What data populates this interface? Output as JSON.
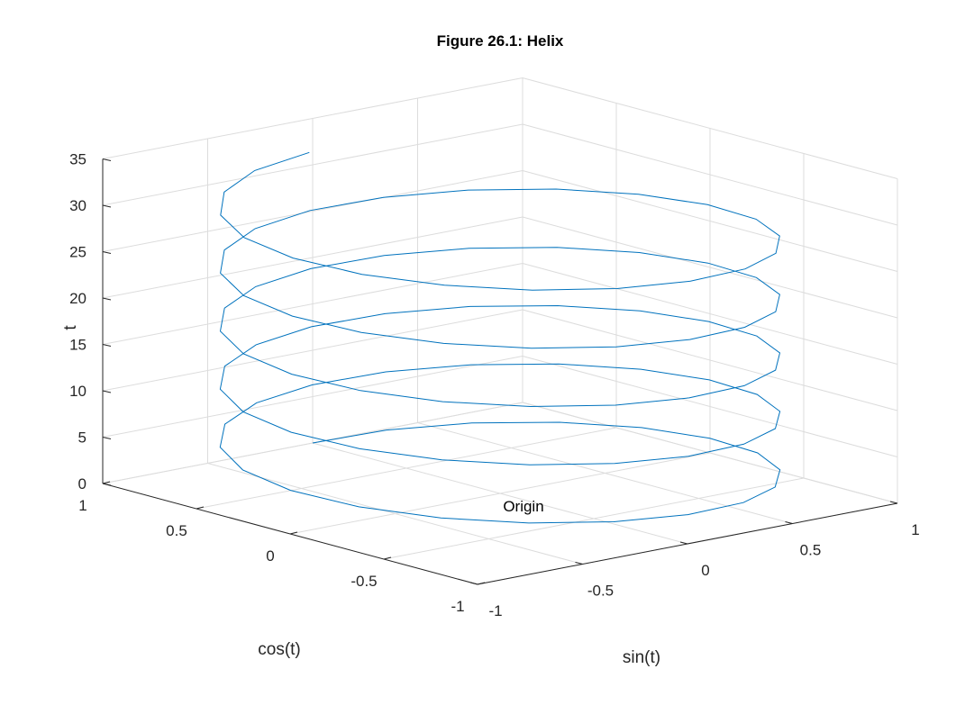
{
  "colors": {
    "line": "#0072BD",
    "grid": "#dcdcdc",
    "axis": "#262626",
    "background": "#ffffff"
  },
  "chart_data": {
    "type": "line",
    "projection": "3d",
    "title": "Figure 26.1: Helix",
    "xlabel": "sin(t)",
    "ylabel": "cos(t)",
    "zlabel": "t",
    "xlim": [
      -1,
      1
    ],
    "ylim": [
      -1,
      1
    ],
    "zlim": [
      0,
      35
    ],
    "x_ticks": [
      "-1",
      "-0.5",
      "0",
      "0.5",
      "1"
    ],
    "y_ticks": [
      "-1",
      "-0.5",
      "0",
      "0.5",
      "1"
    ],
    "z_ticks": [
      "0",
      "5",
      "10",
      "15",
      "20",
      "25",
      "30",
      "35"
    ],
    "grid": true,
    "series": [
      {
        "x_expr": "sin(t)",
        "y_expr": "cos(t)",
        "z_expr": "t",
        "t_range": [
          0,
          31.4
        ],
        "t_step": 0.314
      }
    ],
    "annotations": [
      {
        "text": "Origin",
        "x": 0,
        "y": 0,
        "z": 0
      }
    ]
  }
}
